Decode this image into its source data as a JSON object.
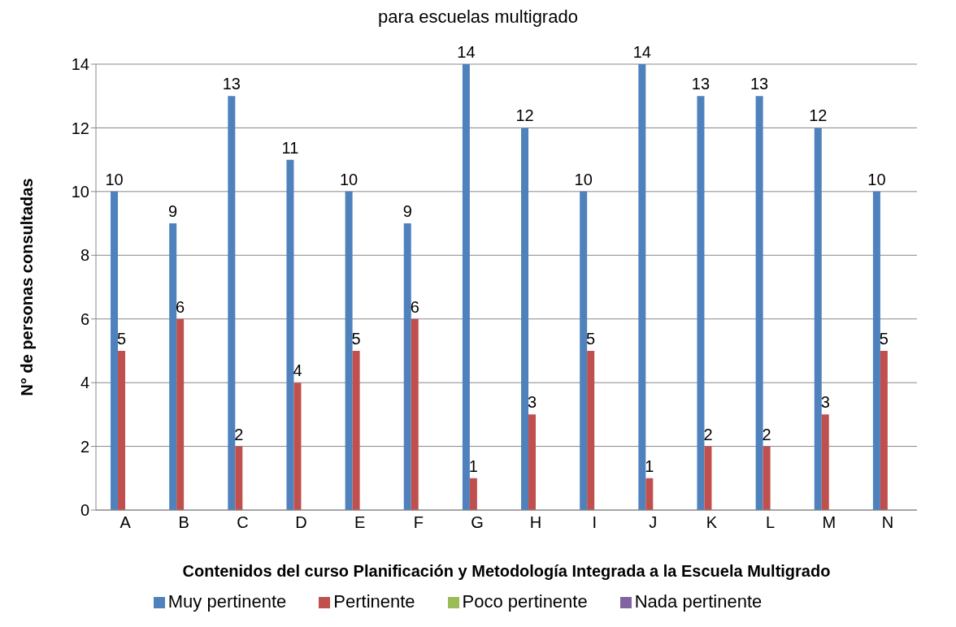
{
  "chart_data": {
    "type": "bar",
    "title": "para escuelas multigrado",
    "xlabel": "Contenidos del curso Planificación y Metodología Integrada a la Escuela Multigrado",
    "ylabel": "N° de personas consultadas",
    "categories": [
      "A",
      "B",
      "C",
      "D",
      "E",
      "F",
      "G",
      "H",
      "I",
      "J",
      "K",
      "L",
      "M",
      "N"
    ],
    "series": [
      {
        "name": "Muy pertinente",
        "color": "#4f81bd",
        "values": [
          10,
          9,
          13,
          11,
          10,
          9,
          14,
          12,
          10,
          14,
          13,
          13,
          12,
          10
        ],
        "value_labels": [
          "10",
          "9",
          "13",
          "11",
          "10",
          "9",
          "14",
          "12",
          "10",
          "14",
          "13",
          "13",
          "12",
          "10"
        ]
      },
      {
        "name": "Pertinente",
        "color": "#c0504d",
        "values": [
          5,
          6,
          2,
          4,
          5,
          6,
          1,
          3,
          5,
          1,
          2,
          2,
          3,
          5
        ],
        "value_labels": [
          "5",
          "6",
          "2",
          "4",
          "5",
          "6",
          "1",
          "3",
          "5",
          "1",
          "2",
          "2",
          "3",
          "5"
        ]
      },
      {
        "name": "Poco pertinente",
        "color": "#9bbb59",
        "values": [
          0,
          0,
          0,
          0,
          0,
          0,
          0,
          0,
          0,
          0,
          0,
          0,
          0,
          0
        ]
      },
      {
        "name": "Nada pertinente",
        "color": "#8064a2",
        "values": [
          0,
          0,
          0,
          0,
          0,
          0,
          0,
          0,
          0,
          0,
          0,
          0,
          0,
          0
        ]
      }
    ],
    "ylim": [
      0,
      14
    ],
    "yticks": [
      0,
      2,
      4,
      6,
      8,
      10,
      12,
      14
    ],
    "grid": "y",
    "legend": "bottom"
  }
}
